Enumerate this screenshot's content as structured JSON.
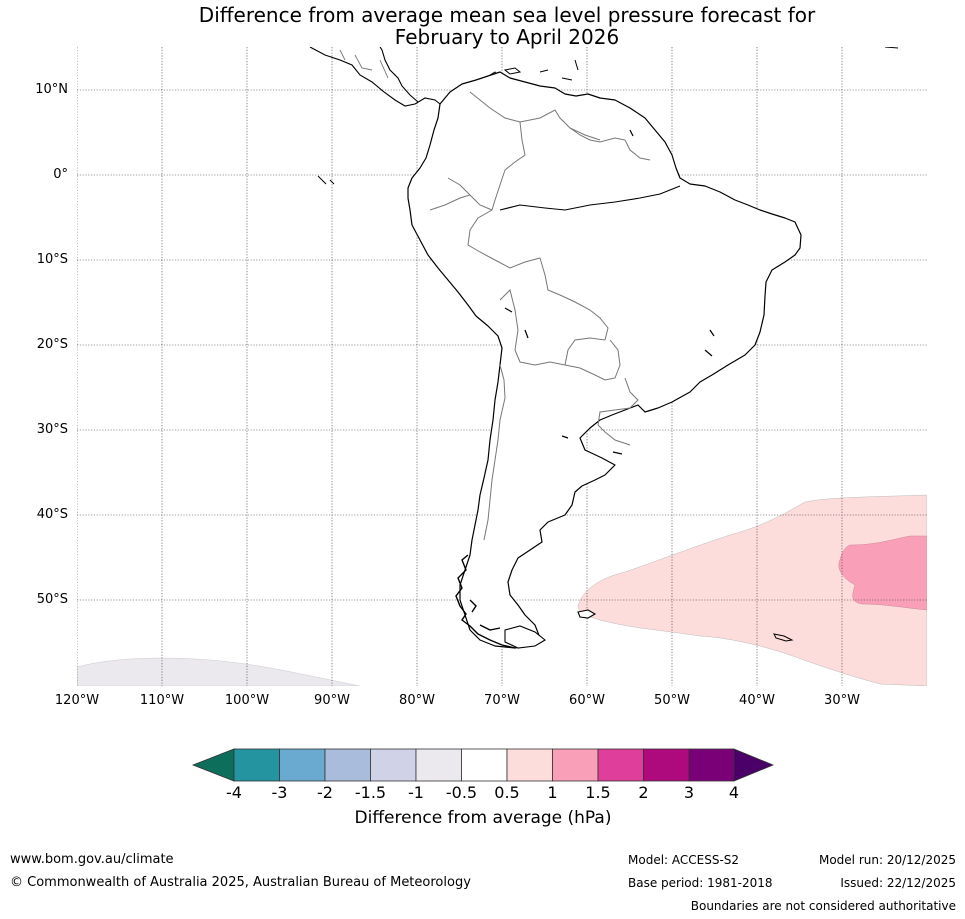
{
  "title": {
    "line1": "Difference from average mean sea level pressure forecast for",
    "line2": "February to April 2026"
  },
  "map": {
    "region": "South America",
    "lat_labels": [
      "10°N",
      "0°",
      "10°S",
      "20°S",
      "30°S",
      "40°S",
      "50°S"
    ],
    "lon_labels": [
      "120°W",
      "110°W",
      "100°W",
      "90°W",
      "80°W",
      "70°W",
      "60°W",
      "50°W",
      "40°W",
      "30°W"
    ]
  },
  "colorbar": {
    "label": "Difference from average (hPa)",
    "ticks": [
      "-4",
      "-3",
      "-2",
      "-1.5",
      "-1",
      "-0.5",
      "0.5",
      "1",
      "1.5",
      "2",
      "3",
      "4"
    ],
    "colors": [
      "#0e6e5c",
      "#2394a0",
      "#6aaad0",
      "#a9bcdc",
      "#d0d3e8",
      "#ebe8ee",
      "#ffffff",
      "#fddcdc",
      "#f9a0b8",
      "#df3e9a",
      "#ae0a7e",
      "#7a0078",
      "#4a0068"
    ]
  },
  "footer": {
    "website": "www.bom.gov.au/climate",
    "copyright": "© Commonwealth of Australia 2025, Australian Bureau of Meteorology",
    "model": "Model: ACCESS-S2",
    "base_period": "Base period: 1981-2018",
    "model_run": "Model run: 20/12/2025",
    "issued": "Issued: 22/12/2025",
    "disclaimer": "Boundaries are not considered authoritative"
  }
}
